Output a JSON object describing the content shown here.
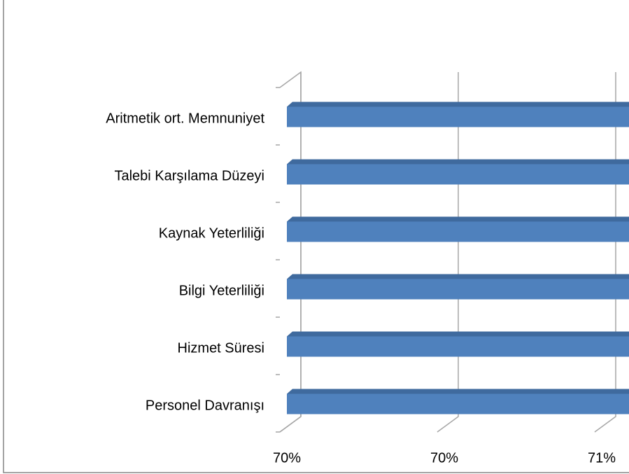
{
  "chart_data": {
    "type": "bar3d-horizontal",
    "categories": [
      "Aritmetik ort. Memnuniyet",
      "Talebi Karşılama Düzeyi",
      "Kaynak Yeterliliği",
      "Bilgi Yeterliliği",
      "Hizmet Süresi",
      "Personel Davranışı"
    ],
    "values": [
      72,
      72,
      72,
      72,
      72,
      72
    ],
    "color": "#4f81bd",
    "xlim": [
      70,
      71.1
    ],
    "xticks": [
      {
        "value": 70,
        "label": "70%"
      },
      {
        "value": 70.5,
        "label": "70%"
      },
      {
        "value": 71,
        "label": "71%"
      }
    ],
    "grid": true
  }
}
